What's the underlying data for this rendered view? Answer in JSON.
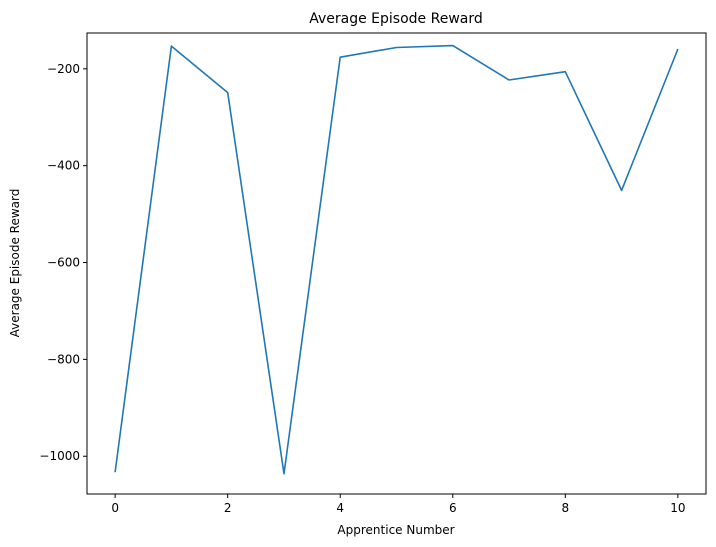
{
  "chart_data": {
    "type": "line",
    "title": "Average Episode Reward",
    "xlabel": "Apprentice Number",
    "ylabel": "Average Episode Reward",
    "xlim": [
      -0.5,
      10.5
    ],
    "ylim": [
      -1078,
      -126
    ],
    "xticks": [
      0,
      2,
      4,
      6,
      8,
      10
    ],
    "xtick_labels": [
      "0",
      "2",
      "4",
      "6",
      "8",
      "10"
    ],
    "yticks": [
      -1000,
      -800,
      -600,
      -400,
      -200
    ],
    "ytick_labels": [
      "−1000",
      "−800",
      "−600",
      "−400",
      "−200"
    ],
    "grid": false,
    "series": [
      {
        "color": "#1f77b4",
        "x": [
          0,
          1,
          2,
          3,
          4,
          5,
          6,
          7,
          8,
          9,
          10
        ],
        "y": [
          -1033,
          -153,
          -249,
          -1036,
          -176,
          -156,
          -152,
          -223,
          -206,
          -451,
          -159
        ]
      }
    ]
  }
}
